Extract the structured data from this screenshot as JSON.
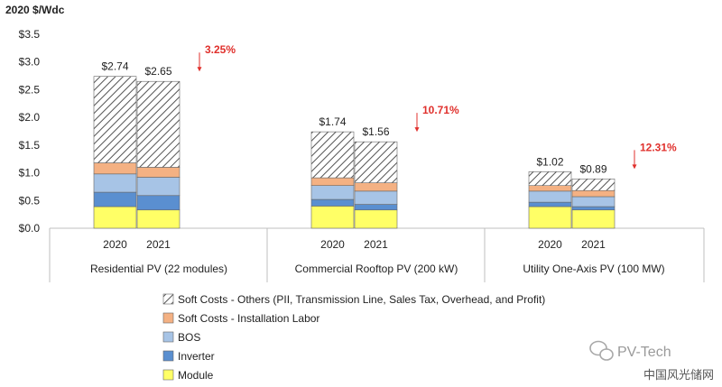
{
  "chart_data": {
    "type": "bar",
    "stacked": true,
    "ylabel": "2020 $/Wdc",
    "ylim": [
      0,
      3.5
    ],
    "yticks": [
      "$0.0",
      "$0.5",
      "$1.0",
      "$1.5",
      "$2.0",
      "$2.5",
      "$3.0",
      "$3.5"
    ],
    "grid": false,
    "legend_position": "bottom",
    "groups": [
      {
        "name": "Residential PV (22 modules)",
        "years": [
          "2020",
          "2021"
        ],
        "totals": [
          "$2.74",
          "$2.65"
        ],
        "change": "3.25%"
      },
      {
        "name": "Commercial Rooftop PV (200 kW)",
        "years": [
          "2020",
          "2021"
        ],
        "totals": [
          "$1.74",
          "$1.56"
        ],
        "change": "10.71%"
      },
      {
        "name": "Utility One-Axis PV (100 MW)",
        "years": [
          "2020",
          "2021"
        ],
        "totals": [
          "$1.02",
          "$0.89"
        ],
        "change": "12.31%"
      }
    ],
    "series": [
      {
        "name": "Module",
        "color": "#ffff66",
        "values": [
          0.39,
          0.33,
          0.4,
          0.33,
          0.39,
          0.33
        ]
      },
      {
        "name": "Inverter",
        "color": "#5a8fd0",
        "values": [
          0.26,
          0.26,
          0.12,
          0.1,
          0.08,
          0.06
        ]
      },
      {
        "name": "BOS",
        "color": "#a7c4e6",
        "values": [
          0.33,
          0.33,
          0.25,
          0.24,
          0.2,
          0.18
        ]
      },
      {
        "name": "Soft Costs - Installation Labor",
        "color": "#f4b183",
        "values": [
          0.2,
          0.18,
          0.14,
          0.15,
          0.1,
          0.11
        ]
      },
      {
        "name": "Soft Costs - Others (PII, Transmission Line, Sales Tax, Overhead, and Profit)",
        "color": "hatch",
        "values": [
          1.56,
          1.55,
          0.83,
          0.74,
          0.25,
          0.21
        ]
      }
    ]
  },
  "watermark": {
    "text": "PV-Tech",
    "overlay": "中国风光储网"
  }
}
